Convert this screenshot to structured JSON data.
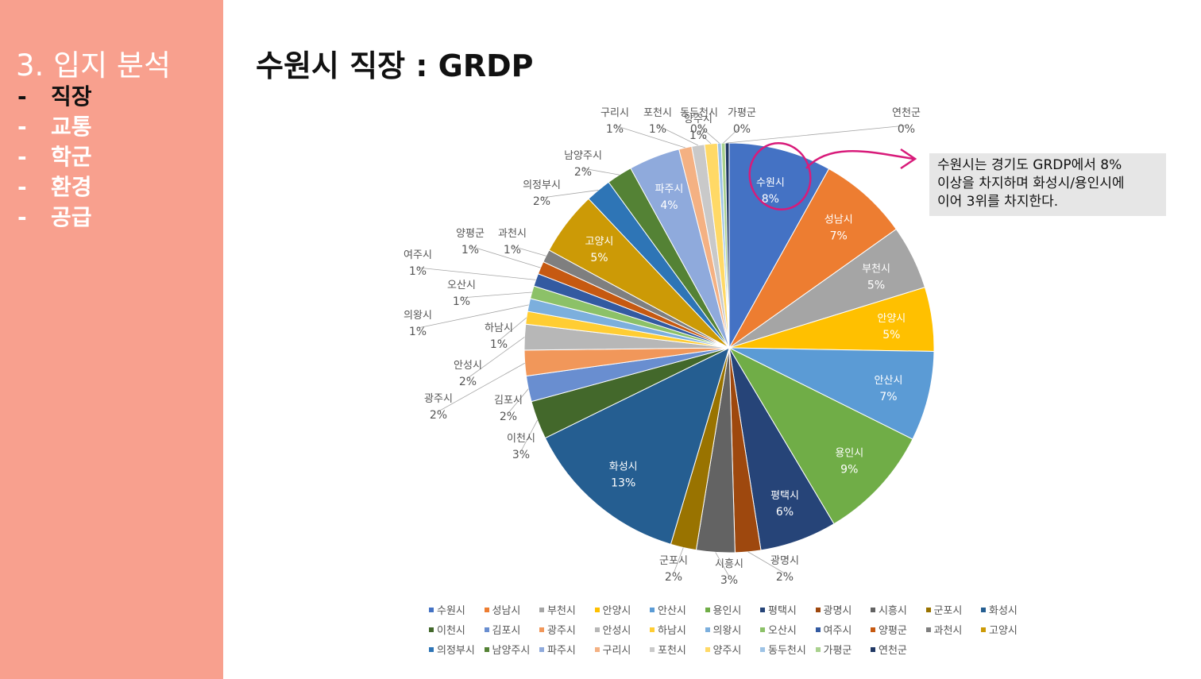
{
  "sidebar": {
    "section_title": "3. 입지 분석",
    "items": [
      {
        "dash": "-",
        "label": "직장",
        "active": true
      },
      {
        "dash": "-",
        "label": "교통",
        "active": false
      },
      {
        "dash": "-",
        "label": "학군",
        "active": false
      },
      {
        "dash": "-",
        "label": "환경",
        "active": false
      },
      {
        "dash": "-",
        "label": "공급",
        "active": false
      }
    ]
  },
  "page_title": "수원시 직장 : GRDP",
  "note": {
    "lines": [
      "수원시는 경기도 GRDP에서 8%",
      "이상을 차지하며 화성시/용인시에",
      "이어 3위를 차지한다."
    ]
  },
  "colors": {
    "sidebar_bg": "#F8A08E",
    "note_bg": "#E6E6E6",
    "annotation": "#D81B7A"
  },
  "chart_data": {
    "type": "pie",
    "title": "",
    "unit": "%",
    "labels": [
      "수원시",
      "성남시",
      "부천시",
      "안양시",
      "안산시",
      "용인시",
      "평택시",
      "광명시",
      "시흥시",
      "군포시",
      "화성시",
      "이천시",
      "김포시",
      "광주시",
      "안성시",
      "하남시",
      "의왕시",
      "오산시",
      "여주시",
      "양평군",
      "과천시",
      "고양시",
      "의정부시",
      "남양주시",
      "파주시",
      "구리시",
      "포천시",
      "양주시",
      "동두천시",
      "가평군",
      "연천군"
    ],
    "values": [
      8,
      7,
      5,
      5,
      7,
      9,
      6,
      2,
      3,
      2,
      13,
      3,
      2,
      2,
      2,
      1,
      1,
      1,
      1,
      1,
      1,
      5,
      2,
      2,
      4,
      1,
      1,
      1,
      0,
      0,
      0
    ],
    "colors": [
      "#4472C4",
      "#ED7D31",
      "#A5A5A5",
      "#FFC000",
      "#5B9BD5",
      "#70AD47",
      "#264478",
      "#9E480E",
      "#636363",
      "#997300",
      "#255E91",
      "#43682B",
      "#698ED0",
      "#F1975A",
      "#B7B7B7",
      "#FFCD33",
      "#7CAFDD",
      "#8CC168",
      "#335AA1",
      "#C65911",
      "#7F7F7F",
      "#CC9A06",
      "#2E75B6",
      "#548235",
      "#8FAADC",
      "#F4B183",
      "#C9C9C9",
      "#FFD966",
      "#9DC3E6",
      "#A9D18E",
      "#203864"
    ],
    "data_labels": [
      "8%",
      "7%",
      "5%",
      "5%",
      "7%",
      "9%",
      "6%",
      "2%",
      "3%",
      "2%",
      "13%",
      "3%",
      "2%",
      "2%",
      "2%",
      "1%",
      "1%",
      "1%",
      "1%",
      "1%",
      "1%",
      "5%",
      "2%",
      "2%",
      "4%",
      "1%",
      "1%",
      "1%",
      "0%",
      "0%",
      "0%"
    ],
    "legend_position": "bottom"
  }
}
